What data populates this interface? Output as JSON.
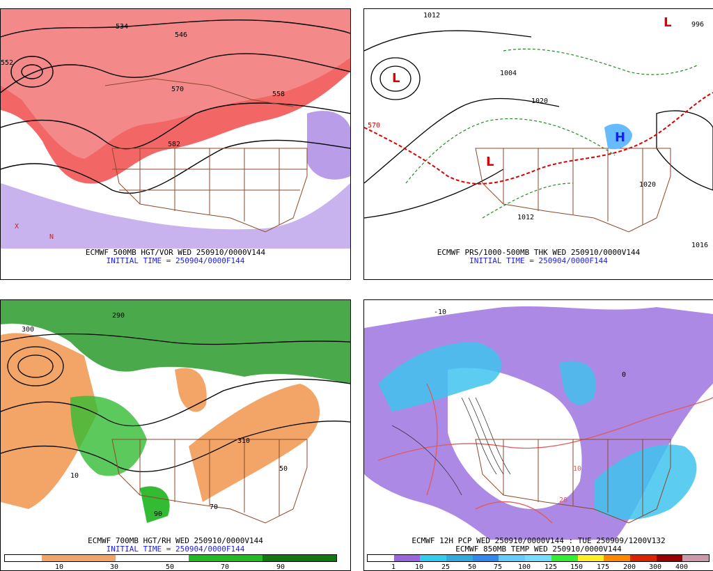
{
  "panels": [
    {
      "id": "tl",
      "caption1": "ECMWF 500MB HGT/VOR WED 250910/0000V144",
      "caption2": "INITIAL TIME = 250904/0000F144",
      "labels": [
        "534",
        "546",
        "558",
        "570",
        "582",
        "552",
        "X",
        "N"
      ]
    },
    {
      "id": "tr",
      "caption1": "ECMWF PRS/1000-500MB THK WED 250910/0000V144",
      "caption2": "INITIAL TIME = 250904/0000F144",
      "labels": [
        "1012",
        "996",
        "1004",
        "1020",
        "1012",
        "570",
        "1020",
        "1016",
        "L",
        "H"
      ]
    },
    {
      "id": "bl",
      "caption1": "ECMWF 700MB HGT/RH WED 250910/0000V144",
      "caption2": "INITIAL TIME = 250904/0000F144",
      "labels": [
        "300",
        "290",
        "310",
        "50",
        "70",
        "90",
        "10"
      ]
    },
    {
      "id": "br",
      "caption1": "ECMWF 12H PCP WED 250910/0000V144 : TUE 250909/1200V132",
      "caption2": "ECMWF 850MB TEMP WED 250910/0000V144",
      "labels": [
        "0",
        "10",
        "20",
        "-10"
      ]
    }
  ],
  "legend_rh": {
    "labels": [
      "10",
      "30",
      "50",
      "70",
      "90"
    ],
    "colors": [
      "#ffffff",
      "#f2a566",
      "#f2a566",
      "#ffffff",
      "#ffffff",
      "#22bb22",
      "#22bb22",
      "#117711",
      "#117711"
    ]
  },
  "legend_pcp": {
    "labels": [
      "1",
      "10",
      "25",
      "50",
      "75",
      "100",
      "125",
      "150",
      "175",
      "200",
      "300",
      "400"
    ],
    "colors": [
      "#ffffff",
      "#9966dd",
      "#33ccee",
      "#33aadd",
      "#3388ee",
      "#66ccff",
      "#77ddff",
      "#33ee33",
      "#ffee22",
      "#ff8800",
      "#dd2200",
      "#990000",
      "#cc99aa"
    ]
  },
  "colors": {
    "vorticity": "#dd2222",
    "vorticity_light": "#f4a0a0",
    "vorticity_neg": "#8855dd",
    "borders": "#8b4a2b",
    "thickness": "#dd0000",
    "pressure_dashed": "#228822",
    "rh_dry": "#f2a566",
    "rh_moist": "#2a9a2a",
    "pcp_purple": "#9c74e0",
    "pcp_cyan": "#3fc3ee",
    "temp_contour": "#e25a5a"
  }
}
